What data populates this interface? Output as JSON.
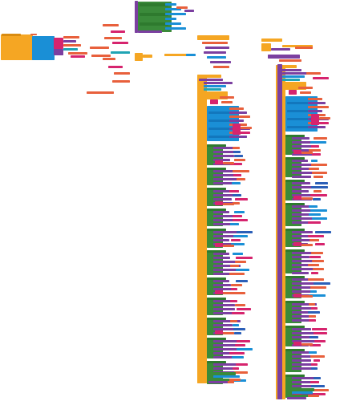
{
  "palette": {
    "event": "#f5a623",
    "event_dark": "#d98b10",
    "procedure": "#7b3fa0",
    "control": "#3a8a3a",
    "component": "#1a8fd6",
    "text": "#e8603c",
    "math": "#2b5fb8",
    "logic": "#d6246e",
    "variable": "#e86a1e",
    "list": "#6b4bc8",
    "teal": "#20a4b4"
  },
  "workspace": {
    "name": "blocks-editor-workspace"
  }
}
